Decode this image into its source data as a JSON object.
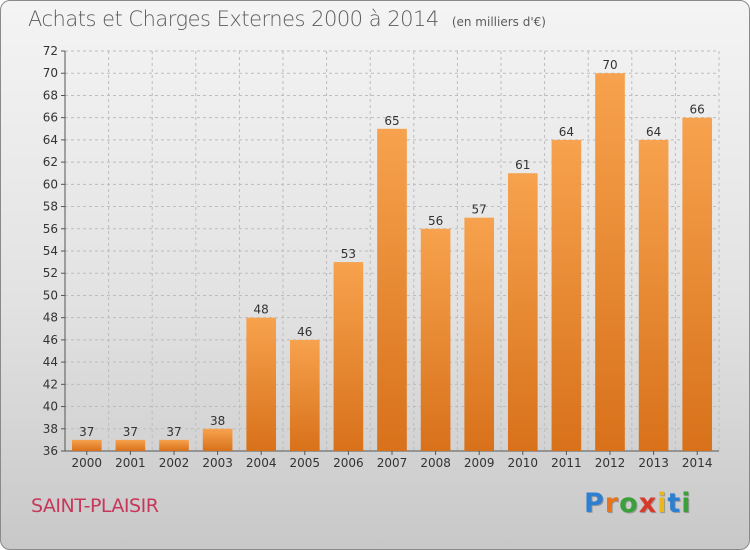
{
  "title": "Achats et Charges Externes 2000 à 2014",
  "unit": "(en milliers d'€)",
  "commune": "SAINT-PLAISIR",
  "logo": {
    "text": "Proxiti",
    "letters": [
      {
        "ch": "P",
        "color": "#2f7fd0"
      },
      {
        "ch": "r",
        "color": "#e8731c"
      },
      {
        "ch": "o",
        "color": "#3aa13a"
      },
      {
        "ch": "x",
        "color": "#d83a2a"
      },
      {
        "ch": "i",
        "color": "#e8b81c"
      },
      {
        "ch": "t",
        "color": "#2f7fd0"
      },
      {
        "ch": "i",
        "color": "#3aa13a"
      }
    ]
  },
  "colors": {
    "bar_light": "#f7a24e",
    "bar_dark": "#d8711a",
    "grid": "#bdbdbd",
    "axis": "#555555"
  },
  "chart_data": {
    "type": "bar",
    "categories": [
      "2000",
      "2001",
      "2002",
      "2003",
      "2004",
      "2005",
      "2006",
      "2007",
      "2008",
      "2009",
      "2010",
      "2011",
      "2012",
      "2013",
      "2014"
    ],
    "values": [
      37,
      37,
      37,
      38,
      48,
      46,
      53,
      65,
      56,
      57,
      61,
      64,
      70,
      64,
      66
    ],
    "title": "Achats et Charges Externes 2000 à 2014",
    "xlabel": "",
    "ylabel": "",
    "ylim": [
      36,
      72
    ],
    "yticks": [
      36,
      38,
      40,
      42,
      44,
      46,
      48,
      50,
      52,
      54,
      56,
      58,
      60,
      62,
      64,
      66,
      68,
      70,
      72
    ],
    "grid": true
  }
}
